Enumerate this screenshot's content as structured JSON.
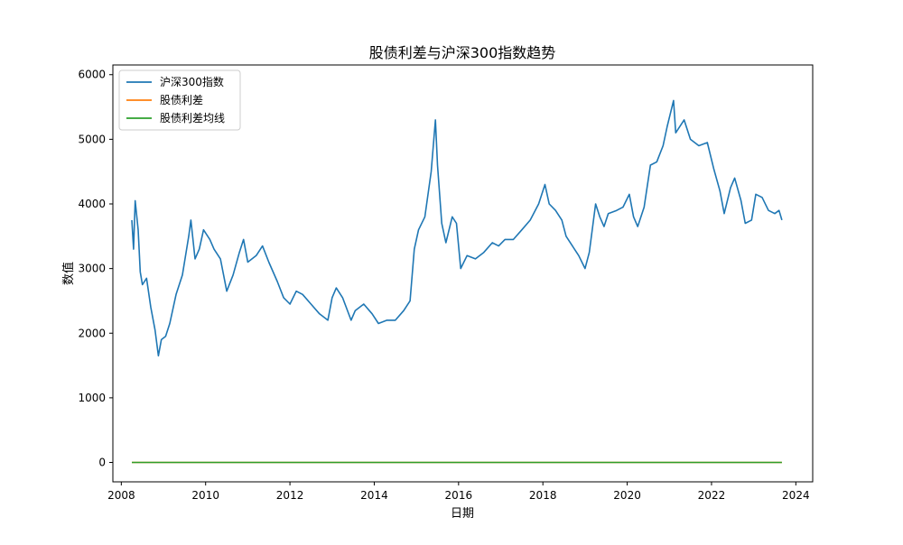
{
  "chart_data": {
    "type": "line",
    "title": "股债利差与沪深300指数趋势",
    "xlabel": "日期",
    "ylabel": "数值",
    "xlim": [
      2007.8,
      2024.4
    ],
    "ylim": [
      -300,
      6150
    ],
    "x_ticks": [
      2008,
      2010,
      2012,
      2014,
      2016,
      2018,
      2020,
      2022,
      2024
    ],
    "x_tick_labels": [
      "2008",
      "2010",
      "2012",
      "2014",
      "2016",
      "2018",
      "2020",
      "2022",
      "2024"
    ],
    "y_ticks": [
      0,
      1000,
      2000,
      3000,
      4000,
      5000,
      6000
    ],
    "y_tick_labels": [
      "0",
      "1000",
      "2000",
      "3000",
      "4000",
      "5000",
      "6000"
    ],
    "grid": false,
    "legend_position": "upper-left",
    "series": [
      {
        "name": "沪深300指数",
        "color": "#1f77b4",
        "points": [
          [
            2008.25,
            3750
          ],
          [
            2008.29,
            3300
          ],
          [
            2008.33,
            4050
          ],
          [
            2008.4,
            3600
          ],
          [
            2008.45,
            2950
          ],
          [
            2008.5,
            2750
          ],
          [
            2008.6,
            2850
          ],
          [
            2008.7,
            2400
          ],
          [
            2008.8,
            2050
          ],
          [
            2008.88,
            1650
          ],
          [
            2008.95,
            1900
          ],
          [
            2009.05,
            1950
          ],
          [
            2009.15,
            2150
          ],
          [
            2009.3,
            2600
          ],
          [
            2009.45,
            2900
          ],
          [
            2009.6,
            3500
          ],
          [
            2009.65,
            3750
          ],
          [
            2009.75,
            3150
          ],
          [
            2009.85,
            3300
          ],
          [
            2009.95,
            3600
          ],
          [
            2010.1,
            3450
          ],
          [
            2010.2,
            3300
          ],
          [
            2010.35,
            3150
          ],
          [
            2010.5,
            2650
          ],
          [
            2010.65,
            2900
          ],
          [
            2010.8,
            3250
          ],
          [
            2010.9,
            3450
          ],
          [
            2011.0,
            3100
          ],
          [
            2011.2,
            3200
          ],
          [
            2011.35,
            3350
          ],
          [
            2011.5,
            3100
          ],
          [
            2011.7,
            2800
          ],
          [
            2011.85,
            2550
          ],
          [
            2012.0,
            2450
          ],
          [
            2012.15,
            2650
          ],
          [
            2012.3,
            2600
          ],
          [
            2012.5,
            2450
          ],
          [
            2012.7,
            2300
          ],
          [
            2012.9,
            2200
          ],
          [
            2013.0,
            2550
          ],
          [
            2013.1,
            2700
          ],
          [
            2013.25,
            2550
          ],
          [
            2013.45,
            2200
          ],
          [
            2013.55,
            2350
          ],
          [
            2013.75,
            2450
          ],
          [
            2013.95,
            2300
          ],
          [
            2014.1,
            2150
          ],
          [
            2014.3,
            2200
          ],
          [
            2014.5,
            2200
          ],
          [
            2014.7,
            2350
          ],
          [
            2014.85,
            2500
          ],
          [
            2014.95,
            3300
          ],
          [
            2015.05,
            3600
          ],
          [
            2015.2,
            3800
          ],
          [
            2015.35,
            4500
          ],
          [
            2015.45,
            5300
          ],
          [
            2015.5,
            4600
          ],
          [
            2015.6,
            3700
          ],
          [
            2015.7,
            3400
          ],
          [
            2015.85,
            3800
          ],
          [
            2015.95,
            3700
          ],
          [
            2016.05,
            3000
          ],
          [
            2016.2,
            3200
          ],
          [
            2016.4,
            3150
          ],
          [
            2016.6,
            3250
          ],
          [
            2016.8,
            3400
          ],
          [
            2016.95,
            3350
          ],
          [
            2017.1,
            3450
          ],
          [
            2017.3,
            3450
          ],
          [
            2017.5,
            3600
          ],
          [
            2017.7,
            3750
          ],
          [
            2017.9,
            4000
          ],
          [
            2018.05,
            4300
          ],
          [
            2018.15,
            4000
          ],
          [
            2018.3,
            3900
          ],
          [
            2018.45,
            3750
          ],
          [
            2018.55,
            3500
          ],
          [
            2018.7,
            3350
          ],
          [
            2018.85,
            3200
          ],
          [
            2019.0,
            3000
          ],
          [
            2019.1,
            3250
          ],
          [
            2019.25,
            4000
          ],
          [
            2019.35,
            3800
          ],
          [
            2019.45,
            3650
          ],
          [
            2019.55,
            3850
          ],
          [
            2019.75,
            3900
          ],
          [
            2019.9,
            3950
          ],
          [
            2020.05,
            4150
          ],
          [
            2020.15,
            3800
          ],
          [
            2020.25,
            3650
          ],
          [
            2020.4,
            3950
          ],
          [
            2020.55,
            4600
          ],
          [
            2020.7,
            4650
          ],
          [
            2020.85,
            4900
          ],
          [
            2020.95,
            5200
          ],
          [
            2021.1,
            5600
          ],
          [
            2021.15,
            5100
          ],
          [
            2021.35,
            5300
          ],
          [
            2021.5,
            5000
          ],
          [
            2021.7,
            4900
          ],
          [
            2021.9,
            4950
          ],
          [
            2022.05,
            4550
          ],
          [
            2022.2,
            4200
          ],
          [
            2022.3,
            3850
          ],
          [
            2022.45,
            4250
          ],
          [
            2022.55,
            4400
          ],
          [
            2022.7,
            4050
          ],
          [
            2022.8,
            3700
          ],
          [
            2022.95,
            3750
          ],
          [
            2023.05,
            4150
          ],
          [
            2023.2,
            4100
          ],
          [
            2023.35,
            3900
          ],
          [
            2023.5,
            3850
          ],
          [
            2023.6,
            3900
          ],
          [
            2023.67,
            3750
          ]
        ]
      },
      {
        "name": "股债利差",
        "color": "#ff7f0e",
        "points": [
          [
            2008.25,
            0
          ],
          [
            2023.67,
            0
          ]
        ]
      },
      {
        "name": "股债利差均线",
        "color": "#2ca02c",
        "points": [
          [
            2008.25,
            0
          ],
          [
            2023.67,
            0
          ]
        ]
      }
    ]
  }
}
